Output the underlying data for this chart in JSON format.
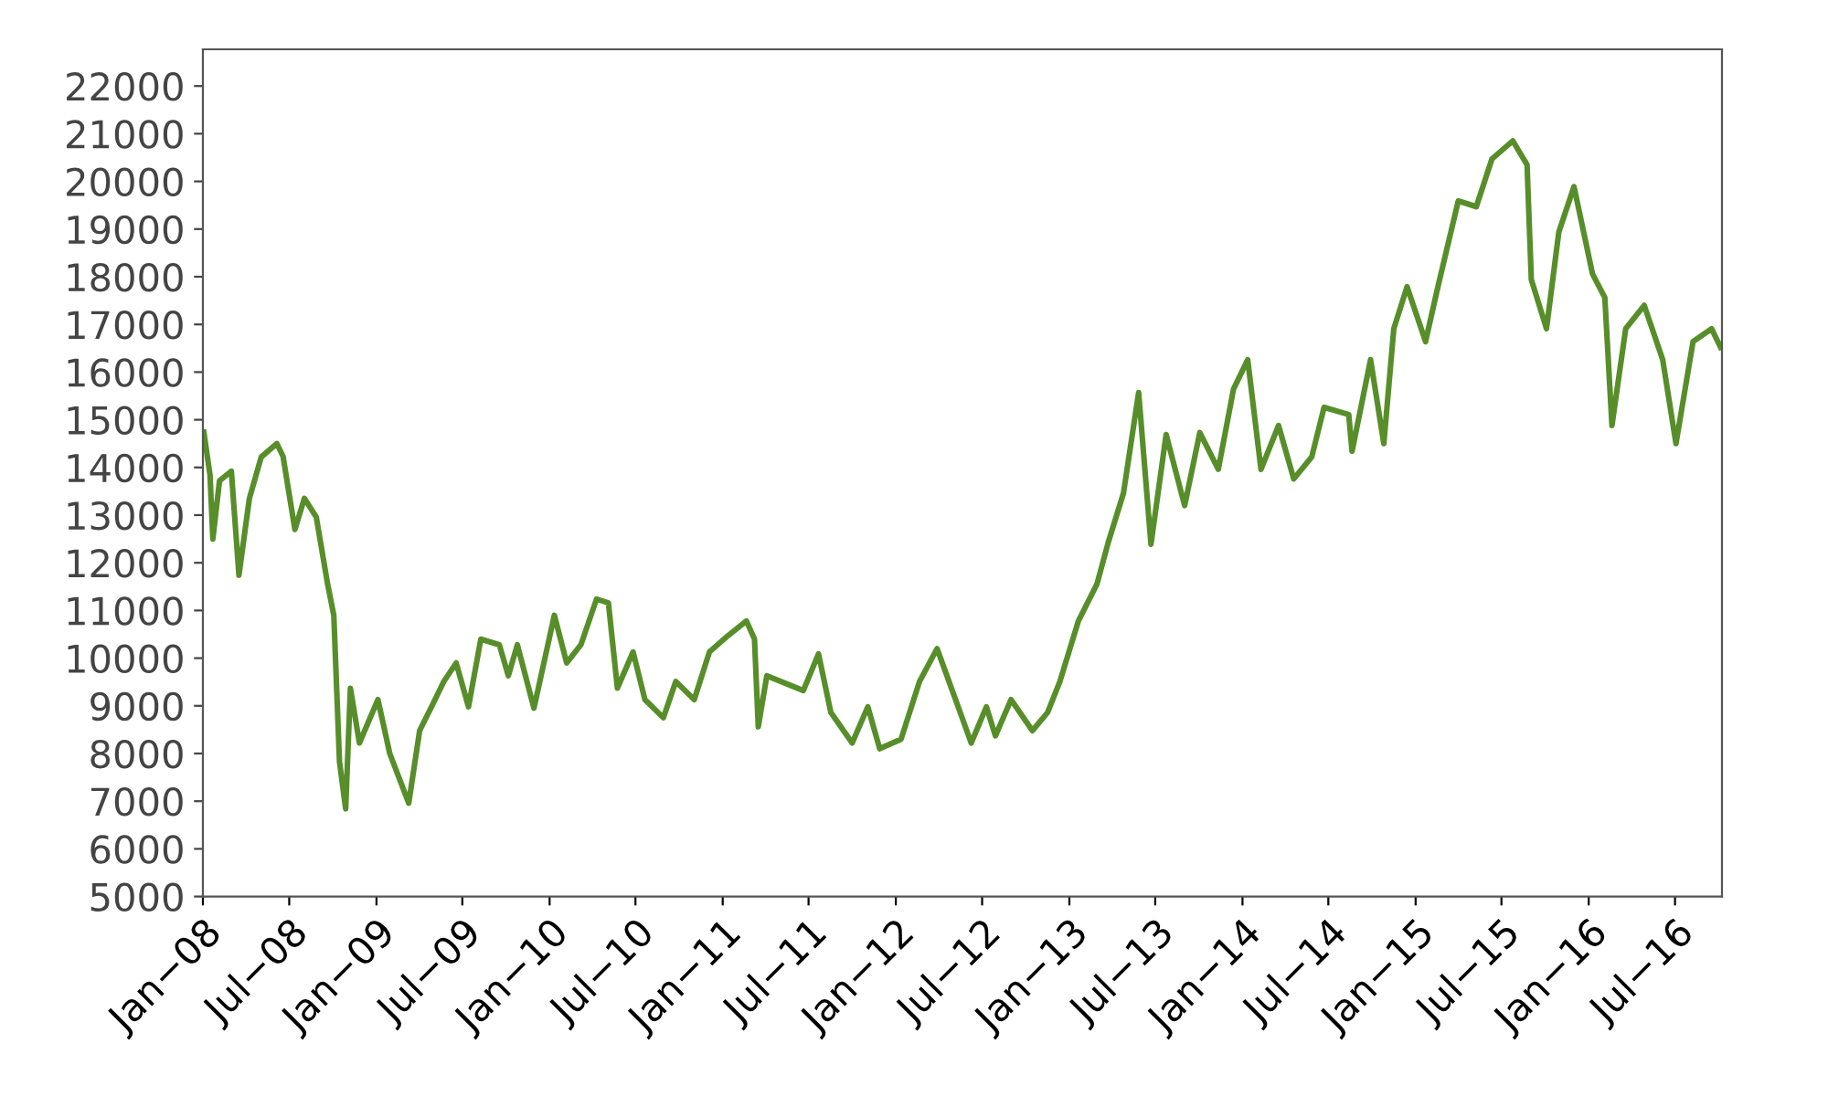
{
  "chart_data": {
    "type": "line",
    "xlim": [
      "2008-01-01",
      "2016-10-08"
    ],
    "ylim": [
      5000,
      22770
    ],
    "yticks": [
      5000,
      6000,
      7000,
      8000,
      9000,
      10000,
      11000,
      12000,
      13000,
      14000,
      15000,
      16000,
      17000,
      18000,
      19000,
      20000,
      21000,
      22000
    ],
    "xticks": [
      {
        "value": "2008-01-01",
        "label": "Jan−08"
      },
      {
        "value": "2008-07-01",
        "label": "Jul−08"
      },
      {
        "value": "2009-01-01",
        "label": "Jan−09"
      },
      {
        "value": "2009-07-01",
        "label": "Jul−09"
      },
      {
        "value": "2010-01-01",
        "label": "Jan−10"
      },
      {
        "value": "2010-07-01",
        "label": "Jul−10"
      },
      {
        "value": "2011-01-01",
        "label": "Jan−11"
      },
      {
        "value": "2011-07-01",
        "label": "Jul−11"
      },
      {
        "value": "2012-01-01",
        "label": "Jan−12"
      },
      {
        "value": "2012-07-01",
        "label": "Jul−12"
      },
      {
        "value": "2013-01-01",
        "label": "Jan−13"
      },
      {
        "value": "2013-07-01",
        "label": "Jul−13"
      },
      {
        "value": "2014-01-01",
        "label": "Jan−14"
      },
      {
        "value": "2014-07-01",
        "label": "Jul−14"
      },
      {
        "value": "2015-01-01",
        "label": "Jan−15"
      },
      {
        "value": "2015-07-01",
        "label": "Jul−15"
      },
      {
        "value": "2016-01-01",
        "label": "Jan−16"
      },
      {
        "value": "2016-07-01",
        "label": "Jul−16"
      }
    ],
    "grid": false,
    "legend": false,
    "marker": "none",
    "line_style": "solid",
    "x": [
      "2008-01-03",
      "2008-01-16",
      "2008-01-22",
      "2008-02-05",
      "2008-03-01",
      "2008-03-17",
      "2008-04-08",
      "2008-05-03",
      "2008-06-05",
      "2008-06-18",
      "2008-07-13",
      "2008-08-02",
      "2008-08-27",
      "2008-09-20",
      "2008-10-03",
      "2008-10-15",
      "2008-10-28",
      "2008-11-07",
      "2008-11-26",
      "2009-01-04",
      "2009-01-29",
      "2009-03-10",
      "2009-04-02",
      "2009-04-28",
      "2009-05-23",
      "2009-06-18",
      "2009-07-14",
      "2009-08-09",
      "2009-09-17",
      "2009-10-06",
      "2009-10-25",
      "2009-11-29",
      "2010-01-11",
      "2010-02-06",
      "2010-03-08",
      "2010-04-10",
      "2010-05-05",
      "2010-05-24",
      "2010-06-26",
      "2010-07-21",
      "2010-08-29",
      "2010-09-24",
      "2010-11-02",
      "2010-12-04",
      "2011-01-12",
      "2011-02-20",
      "2011-03-09",
      "2011-03-17",
      "2011-04-04",
      "2011-06-20",
      "2011-07-22",
      "2011-08-17",
      "2011-10-01",
      "2011-11-03",
      "2011-11-28",
      "2012-01-12",
      "2012-02-20",
      "2012-03-28",
      "2012-05-06",
      "2012-06-08",
      "2012-07-10",
      "2012-07-29",
      "2012-08-31",
      "2012-10-15",
      "2012-11-16",
      "2012-12-12",
      "2013-01-20",
      "2013-02-28",
      "2013-03-24",
      "2013-04-25",
      "2013-05-27",
      "2013-06-22",
      "2013-07-24",
      "2013-09-01",
      "2013-10-03",
      "2013-11-11",
      "2013-12-13",
      "2014-01-12",
      "2014-02-09",
      "2014-03-18",
      "2014-04-19",
      "2014-05-27",
      "2014-06-22",
      "2014-08-13",
      "2014-08-20",
      "2014-09-28",
      "2014-10-26",
      "2014-11-16",
      "2014-12-14",
      "2015-01-22",
      "2015-02-17",
      "2015-04-01",
      "2015-05-09",
      "2015-06-11",
      "2015-07-25",
      "2015-08-24",
      "2015-09-02",
      "2015-10-04",
      "2015-10-30",
      "2015-12-01",
      "2016-01-09",
      "2016-02-04",
      "2016-02-19",
      "2016-03-19",
      "2016-04-27",
      "2016-06-05",
      "2016-07-03",
      "2016-08-08",
      "2016-09-16",
      "2016-10-05"
    ],
    "series": [
      {
        "color": "#578e2a",
        "values": [
          14740,
          13840,
          12500,
          13720,
          13920,
          11740,
          13350,
          14220,
          14500,
          14230,
          12700,
          13350,
          12960,
          11550,
          10900,
          7830,
          6840,
          9370,
          8220,
          9130,
          8000,
          6960,
          8480,
          9000,
          9510,
          9900,
          8980,
          10400,
          10280,
          9630,
          10280,
          8950,
          10900,
          9900,
          10280,
          11240,
          11160,
          9370,
          10130,
          9130,
          8750,
          9510,
          9130,
          10130,
          10470,
          10780,
          10400,
          8560,
          9630,
          9320,
          10090,
          8860,
          8220,
          8980,
          8100,
          8300,
          9510,
          10200,
          9130,
          8220,
          8980,
          8370,
          9130,
          8480,
          8860,
          9510,
          10780,
          11550,
          12430,
          13460,
          15570,
          12390,
          14690,
          13200,
          14730,
          13960,
          15640,
          16260,
          13960,
          14880,
          13760,
          14220,
          15260,
          15110,
          14340,
          16260,
          14500,
          16910,
          17790,
          16640,
          17790,
          19590,
          19470,
          20470,
          20850,
          20350,
          17940,
          16910,
          18940,
          19890,
          18060,
          17560,
          14880,
          16910,
          17400,
          16260,
          14500,
          16640,
          16910,
          16520
        ]
      }
    ]
  }
}
